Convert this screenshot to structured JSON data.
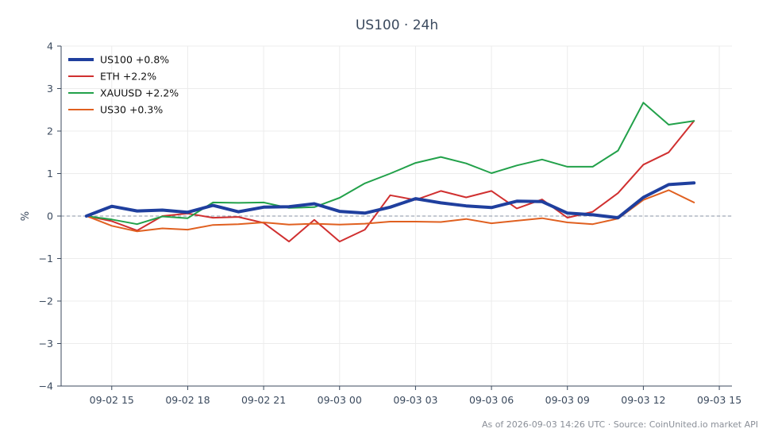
{
  "chart_data": {
    "type": "line",
    "title": "US100 · 24h",
    "ylabel": "%",
    "xlabel": "",
    "ylim": [
      -4,
      4
    ],
    "y_ticks": [
      -4,
      -3,
      -2,
      -1,
      0,
      1,
      2,
      3,
      4
    ],
    "y_tick_labels": [
      "−4",
      "−3",
      "−2",
      "−1",
      "0",
      "1",
      "2",
      "3",
      "4"
    ],
    "xlim": [
      "2026-09-02 13:00",
      "2026-09-03 15:30"
    ],
    "x_ticks": [
      "2026-09-02 15:00",
      "2026-09-02 18:00",
      "2026-09-02 21:00",
      "2026-09-03 00:00",
      "2026-09-03 03:00",
      "2026-09-03 06:00",
      "2026-09-03 09:00",
      "2026-09-03 12:00",
      "2026-09-03 15:00"
    ],
    "x_tick_labels": [
      "09-02 15",
      "09-02 18",
      "09-02 21",
      "09-03 00",
      "09-03 03",
      "09-03 06",
      "09-03 09",
      "09-03 12",
      "09-03 15"
    ],
    "x": [
      "2026-09-02 14:00",
      "2026-09-02 15:00",
      "2026-09-02 16:00",
      "2026-09-02 17:00",
      "2026-09-02 18:00",
      "2026-09-02 19:00",
      "2026-09-02 20:00",
      "2026-09-02 21:00",
      "2026-09-02 22:00",
      "2026-09-02 23:00",
      "2026-09-03 00:00",
      "2026-09-03 01:00",
      "2026-09-03 02:00",
      "2026-09-03 03:00",
      "2026-09-03 04:00",
      "2026-09-03 05:00",
      "2026-09-03 06:00",
      "2026-09-03 07:00",
      "2026-09-03 08:00",
      "2026-09-03 09:00",
      "2026-09-03 10:00",
      "2026-09-03 11:00",
      "2026-09-03 12:00",
      "2026-09-03 13:00",
      "2026-09-03 14:00"
    ],
    "grid": true,
    "legend_position": "top-left",
    "baseline": 0,
    "series": [
      {
        "name": "US100 +0.8%",
        "color": "#1f3f9e",
        "emphasis": true,
        "values": [
          0.0,
          0.23,
          0.12,
          0.14,
          0.09,
          0.25,
          0.1,
          0.21,
          0.22,
          0.29,
          0.11,
          0.07,
          0.21,
          0.41,
          0.31,
          0.24,
          0.2,
          0.35,
          0.34,
          0.07,
          0.03,
          -0.04,
          0.44,
          0.74,
          0.78
        ]
      },
      {
        "name": "ETH +2.2%",
        "color": "#d03030",
        "emphasis": false,
        "values": [
          0.0,
          -0.12,
          -0.34,
          0.0,
          0.06,
          -0.04,
          -0.02,
          -0.16,
          -0.6,
          -0.09,
          -0.6,
          -0.32,
          0.49,
          0.38,
          0.59,
          0.44,
          0.59,
          0.18,
          0.39,
          -0.04,
          0.1,
          0.54,
          1.21,
          1.5,
          2.24
        ]
      },
      {
        "name": "XAUUSD +2.2%",
        "color": "#22a14a",
        "emphasis": false,
        "values": [
          0.0,
          -0.08,
          -0.19,
          -0.01,
          -0.05,
          0.32,
          0.31,
          0.32,
          0.19,
          0.21,
          0.43,
          0.77,
          1.0,
          1.25,
          1.39,
          1.24,
          1.01,
          1.19,
          1.33,
          1.16,
          1.16,
          1.54,
          2.67,
          2.15,
          2.24
        ]
      },
      {
        "name": "US30 +0.3%",
        "color": "#e06020",
        "emphasis": false,
        "values": [
          0.0,
          -0.23,
          -0.36,
          -0.29,
          -0.32,
          -0.21,
          -0.19,
          -0.15,
          -0.2,
          -0.18,
          -0.2,
          -0.18,
          -0.13,
          -0.13,
          -0.14,
          -0.07,
          -0.17,
          -0.11,
          -0.05,
          -0.15,
          -0.19,
          -0.06,
          0.38,
          0.61,
          0.32
        ]
      }
    ],
    "footer": "As of 2026-09-03 14:26 UTC · Source: CoinUnited.io market API"
  }
}
